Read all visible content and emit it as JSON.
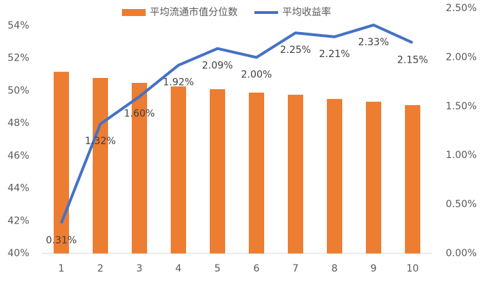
{
  "chart_data": {
    "type": "bar-line",
    "categories": [
      "1",
      "2",
      "3",
      "4",
      "5",
      "6",
      "7",
      "8",
      "9",
      "10"
    ],
    "series": [
      {
        "name": "平均流通市值分位数",
        "type": "bar",
        "color": "#ed7d31",
        "values": [
          51.17,
          50.79,
          50.49,
          50.27,
          50.1,
          49.89,
          49.76,
          49.5,
          49.33,
          49.12
        ]
      },
      {
        "name": "平均收益率",
        "type": "line",
        "axis": "y2",
        "color": "#4472c4",
        "values": [
          0.31,
          1.32,
          1.6,
          1.92,
          2.09,
          2.0,
          2.25,
          2.21,
          2.33,
          2.15
        ],
        "value_labels": [
          "0.31%",
          "1.32%",
          "1.60%",
          "1.92%",
          "2.09%",
          "2.00%",
          "2.25%",
          "2.21%",
          "2.33%",
          "2.15%"
        ]
      }
    ],
    "ylim": [
      40,
      54
    ],
    "yticks": [
      {
        "value": 40,
        "label": "40%"
      },
      {
        "value": 42,
        "label": "42%"
      },
      {
        "value": 44,
        "label": "44%"
      },
      {
        "value": 46,
        "label": "46%"
      },
      {
        "value": 48,
        "label": "48%"
      },
      {
        "value": 50,
        "label": "50%"
      },
      {
        "value": 52,
        "label": "52%"
      },
      {
        "value": 54,
        "label": "54%"
      }
    ],
    "y2lim": [
      0,
      2.5
    ],
    "y2ticks": [
      {
        "value": 0,
        "label": "0.00%"
      },
      {
        "value": 0.5,
        "label": "0.50%"
      },
      {
        "value": 1,
        "label": "1.00%"
      },
      {
        "value": 1.5,
        "label": "1.50%"
      },
      {
        "value": 2,
        "label": "2.00%"
      },
      {
        "value": 2.5,
        "label": "2.50%"
      }
    ],
    "legend": "top",
    "grid": false
  }
}
